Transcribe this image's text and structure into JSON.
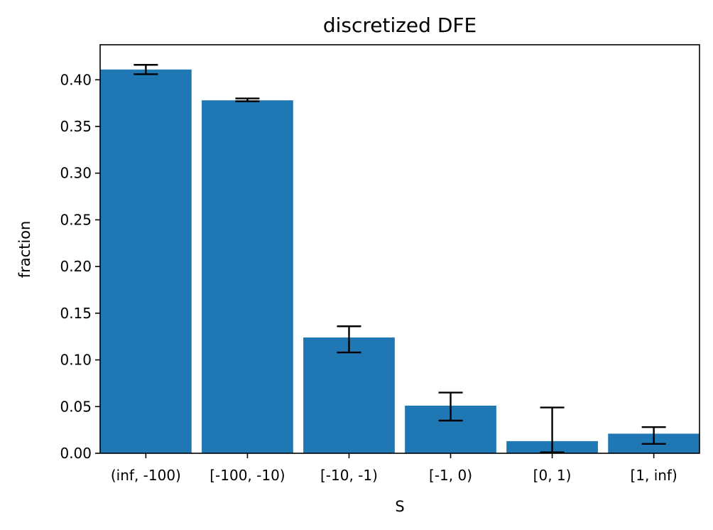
{
  "chart_data": {
    "type": "bar",
    "title": "discretized DFE",
    "xlabel": "S",
    "ylabel": "fraction",
    "categories": [
      "(inf, -100)",
      "[-100, -10)",
      "[-10, -1)",
      "[-1, 0)",
      "[0, 1)",
      "[1, inf)"
    ],
    "values": [
      0.411,
      0.378,
      0.124,
      0.051,
      0.013,
      0.021
    ],
    "error_low": [
      0.406,
      0.377,
      0.108,
      0.035,
      0.001,
      0.01
    ],
    "error_high": [
      0.416,
      0.38,
      0.136,
      0.065,
      0.049,
      0.028
    ],
    "ylim": [
      0,
      0.4375
    ],
    "yticks": [
      "0.00",
      "0.05",
      "0.10",
      "0.15",
      "0.20",
      "0.25",
      "0.30",
      "0.35",
      "0.40"
    ],
    "grid": false,
    "bar_color": "#1f77b4",
    "errorbar_color": "#000000"
  }
}
